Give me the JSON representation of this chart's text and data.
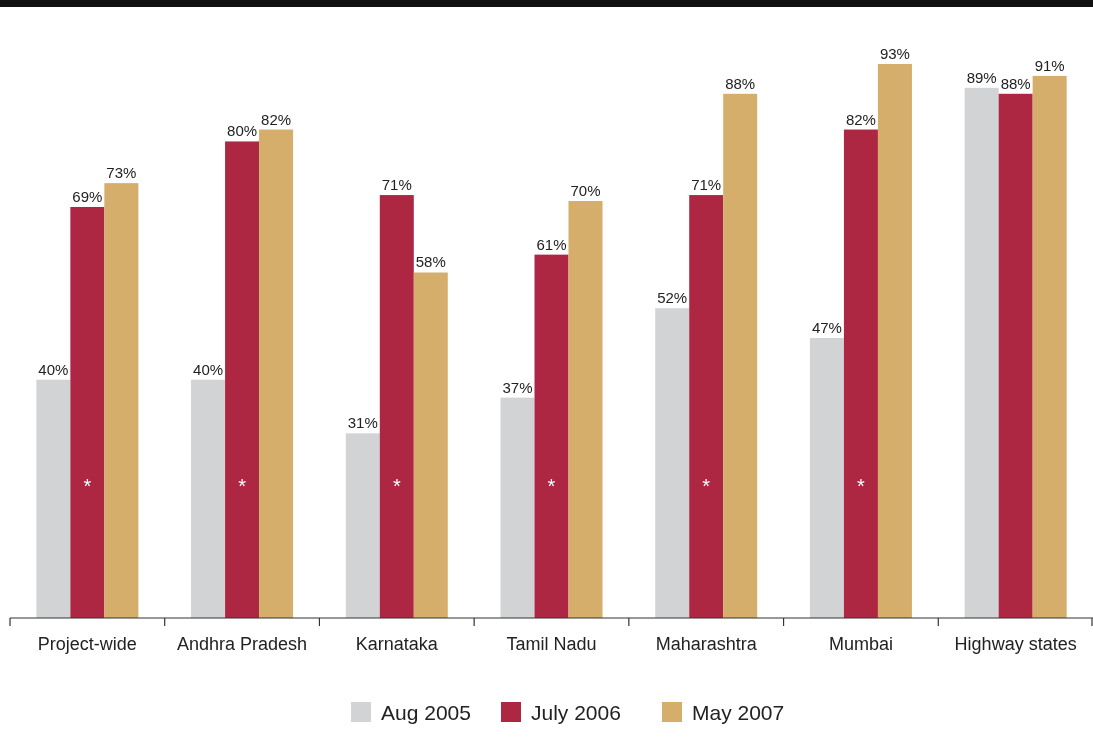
{
  "chart_data": {
    "type": "bar",
    "categories": [
      "Project-wide",
      "Andhra Pradesh",
      "Karnataka",
      "Tamil Nadu",
      "Maharashtra",
      "Mumbai",
      "Highway states"
    ],
    "series": [
      {
        "name": "Aug 2005",
        "color": "#d1d3d4",
        "values": [
          40,
          40,
          31,
          37,
          52,
          47,
          89
        ],
        "value_labels": [
          "40%",
          "40%",
          "31%",
          "37%",
          "52%",
          "47%",
          "89%"
        ]
      },
      {
        "name": "July 2006",
        "color": "#ae2742",
        "values": [
          69,
          80,
          71,
          61,
          71,
          82,
          88
        ],
        "value_labels": [
          "69%",
          "80%",
          "71%",
          "61%",
          "71%",
          "82%",
          "88%"
        ]
      },
      {
        "name": "May 2007",
        "color": "#d4ae6a",
        "values": [
          73,
          82,
          58,
          70,
          88,
          93,
          91
        ],
        "value_labels": [
          "73%",
          "82%",
          "58%",
          "70%",
          "88%",
          "93%",
          "91%"
        ]
      }
    ],
    "tick_labels": "x",
    "legend": "bottom",
    "annotations": [
      "*",
      "*",
      "*",
      "*",
      "*",
      "*"
    ]
  }
}
